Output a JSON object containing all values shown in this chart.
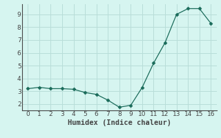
{
  "x": [
    0,
    1,
    2,
    3,
    4,
    5,
    6,
    7,
    8,
    9,
    10,
    11,
    12,
    13,
    14,
    15,
    16
  ],
  "y": [
    3.2,
    3.3,
    3.2,
    3.2,
    3.15,
    2.9,
    2.75,
    2.3,
    1.75,
    1.9,
    3.3,
    5.2,
    6.8,
    9.0,
    9.45,
    9.45,
    8.3
  ],
  "xlabel": "Humidex (Indice chaleur)",
  "ylim": [
    1.5,
    9.8
  ],
  "xlim": [
    -0.5,
    16.5
  ],
  "yticks": [
    2,
    3,
    4,
    5,
    6,
    7,
    8,
    9
  ],
  "xticks": [
    0,
    1,
    2,
    3,
    4,
    5,
    6,
    7,
    8,
    9,
    10,
    11,
    12,
    13,
    14,
    15,
    16
  ],
  "line_color": "#1a6b5a",
  "marker": "D",
  "marker_size": 2.5,
  "bg_color": "#d6f5f0",
  "grid_color": "#b8ddd8",
  "axis_color": "#444444",
  "label_fontsize": 7.5,
  "tick_fontsize": 6.5
}
